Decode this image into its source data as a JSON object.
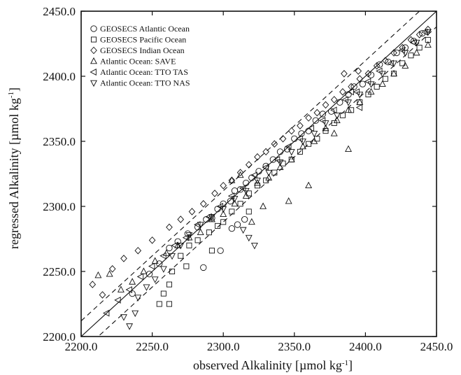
{
  "chart_data": {
    "type": "scatter",
    "title": "",
    "xlabel": "observed Alkalinity [µmol kg",
    "xlabel_sup": "-1",
    "xlabel_tail": "]",
    "ylabel": "regressed Alkalinity [µmol kg",
    "ylabel_sup": "-1",
    "ylabel_tail": "]",
    "xlim": [
      2200,
      2450
    ],
    "ylim": [
      2200,
      2450
    ],
    "xticks": [
      "2200.0",
      "2250.0",
      "2300.0",
      "2350.0",
      "2400.0",
      "2450.0"
    ],
    "yticks": [
      "2200.0",
      "2250.0",
      "2300.0",
      "2350.0",
      "2400.0",
      "2450.0"
    ],
    "legend_position": "top-left",
    "grid": false,
    "lines": [
      {
        "style": "solid",
        "x": [
          2200,
          2450
        ],
        "y": [
          2200,
          2450
        ]
      },
      {
        "style": "dashed",
        "x": [
          2200,
          2450
        ],
        "y": [
          2212,
          2462
        ]
      },
      {
        "style": "dashed",
        "x": [
          2200,
          2450
        ],
        "y": [
          2188,
          2438
        ]
      }
    ],
    "series": [
      {
        "name": "GEOSECS Atlantic Ocean",
        "marker": "circle",
        "x": [
          2236,
          2248,
          2255,
          2262,
          2268,
          2275,
          2282,
          2288,
          2292,
          2296,
          2300,
          2305,
          2308,
          2312,
          2316,
          2320,
          2325,
          2330,
          2335,
          2340,
          2345,
          2350,
          2355,
          2360,
          2365,
          2370,
          2376,
          2382,
          2388,
          2392,
          2398,
          2404,
          2410,
          2416,
          2422,
          2428,
          2434,
          2440,
          2306,
          2310,
          2315,
          2286,
          2298
        ],
        "y": [
          2233,
          2248,
          2256,
          2268,
          2273,
          2279,
          2284,
          2290,
          2291,
          2298,
          2302,
          2304,
          2312,
          2313,
          2318,
          2322,
          2327,
          2331,
          2336,
          2342,
          2344,
          2352,
          2356,
          2358,
          2366,
          2371,
          2373,
          2380,
          2386,
          2392,
          2394,
          2401,
          2409,
          2411,
          2418,
          2422,
          2427,
          2433,
          2283,
          2286,
          2290,
          2253,
          2266
        ]
      },
      {
        "name": "GEOSECS Pacific Ocean",
        "marker": "square",
        "x": [
          2255,
          2258,
          2262,
          2264,
          2270,
          2276,
          2282,
          2290,
          2296,
          2300,
          2306,
          2312,
          2318,
          2324,
          2330,
          2336,
          2342,
          2348,
          2354,
          2360,
          2366,
          2372,
          2378,
          2384,
          2390,
          2396,
          2402,
          2408,
          2414,
          2420,
          2426,
          2432,
          2438,
          2444,
          2262,
          2274,
          2292,
          2318
        ],
        "y": [
          2225,
          2233,
          2240,
          2250,
          2262,
          2270,
          2274,
          2280,
          2285,
          2288,
          2296,
          2302,
          2310,
          2316,
          2320,
          2326,
          2333,
          2336,
          2342,
          2348,
          2352,
          2358,
          2364,
          2370,
          2374,
          2380,
          2386,
          2392,
          2398,
          2402,
          2410,
          2416,
          2422,
          2428,
          2225,
          2254,
          2266,
          2296
        ]
      },
      {
        "name": "GEOSECS Indian Ocean",
        "marker": "diamond",
        "x": [
          2208,
          2215,
          2222,
          2230,
          2240,
          2250,
          2262,
          2270,
          2278,
          2286,
          2294,
          2300,
          2306,
          2312,
          2318,
          2324,
          2330,
          2336,
          2342,
          2348,
          2354,
          2360,
          2366,
          2372,
          2378,
          2384,
          2390,
          2396,
          2402,
          2408,
          2414,
          2420,
          2426,
          2432,
          2438,
          2444,
          2385,
          2395
        ],
        "y": [
          2240,
          2232,
          2252,
          2260,
          2266,
          2274,
          2284,
          2290,
          2296,
          2302,
          2310,
          2316,
          2320,
          2326,
          2332,
          2338,
          2342,
          2348,
          2352,
          2358,
          2362,
          2368,
          2372,
          2378,
          2382,
          2388,
          2392,
          2398,
          2402,
          2408,
          2412,
          2418,
          2422,
          2428,
          2432,
          2436,
          2402,
          2404
        ]
      },
      {
        "name": "Atlantic Ocean: SAVE",
        "marker": "triangle-up",
        "x": [
          2212,
          2220,
          2228,
          2236,
          2244,
          2252,
          2260,
          2268,
          2276,
          2284,
          2292,
          2300,
          2308,
          2316,
          2324,
          2332,
          2340,
          2348,
          2356,
          2364,
          2372,
          2380,
          2388,
          2396,
          2404,
          2412,
          2420,
          2428,
          2436,
          2444,
          2306,
          2312,
          2320,
          2328,
          2346,
          2360,
          2378,
          2388
        ],
        "y": [
          2247,
          2248,
          2236,
          2242,
          2250,
          2258,
          2264,
          2270,
          2276,
          2280,
          2290,
          2294,
          2302,
          2308,
          2318,
          2322,
          2330,
          2336,
          2346,
          2350,
          2360,
          2366,
          2374,
          2380,
          2388,
          2394,
          2402,
          2408,
          2418,
          2424,
          2320,
          2324,
          2288,
          2300,
          2304,
          2316,
          2356,
          2344
        ]
      },
      {
        "name": "Atlantic Ocean: TTO TAS",
        "marker": "triangle-left",
        "x": [
          2218,
          2226,
          2234,
          2242,
          2250,
          2258,
          2266,
          2274,
          2282,
          2290,
          2298,
          2306,
          2314,
          2322,
          2330,
          2338,
          2346,
          2354,
          2362,
          2370,
          2378,
          2386,
          2394,
          2402,
          2410,
          2418,
          2426,
          2434,
          2442,
          2390,
          2396
        ],
        "y": [
          2218,
          2228,
          2236,
          2246,
          2254,
          2262,
          2270,
          2276,
          2286,
          2292,
          2300,
          2308,
          2314,
          2324,
          2330,
          2336,
          2346,
          2352,
          2360,
          2366,
          2374,
          2382,
          2388,
          2396,
          2404,
          2410,
          2420,
          2426,
          2434,
          2388,
          2376
        ]
      },
      {
        "name": "Atlantic Ocean: TTO NAS",
        "marker": "triangle-down",
        "x": [
          2230,
          2234,
          2238,
          2240,
          2246,
          2252,
          2258,
          2264,
          2270,
          2276,
          2284,
          2292,
          2300,
          2308,
          2316,
          2324,
          2332,
          2340,
          2348,
          2356,
          2364,
          2372,
          2380,
          2388,
          2396,
          2404,
          2412,
          2420,
          2428,
          2436,
          2444,
          2314,
          2318,
          2322
        ],
        "y": [
          2215,
          2208,
          2218,
          2230,
          2238,
          2244,
          2252,
          2262,
          2270,
          2278,
          2286,
          2292,
          2298,
          2306,
          2312,
          2320,
          2326,
          2334,
          2342,
          2350,
          2356,
          2364,
          2370,
          2380,
          2386,
          2394,
          2402,
          2410,
          2418,
          2426,
          2434,
          2282,
          2276,
          2270
        ]
      }
    ]
  }
}
